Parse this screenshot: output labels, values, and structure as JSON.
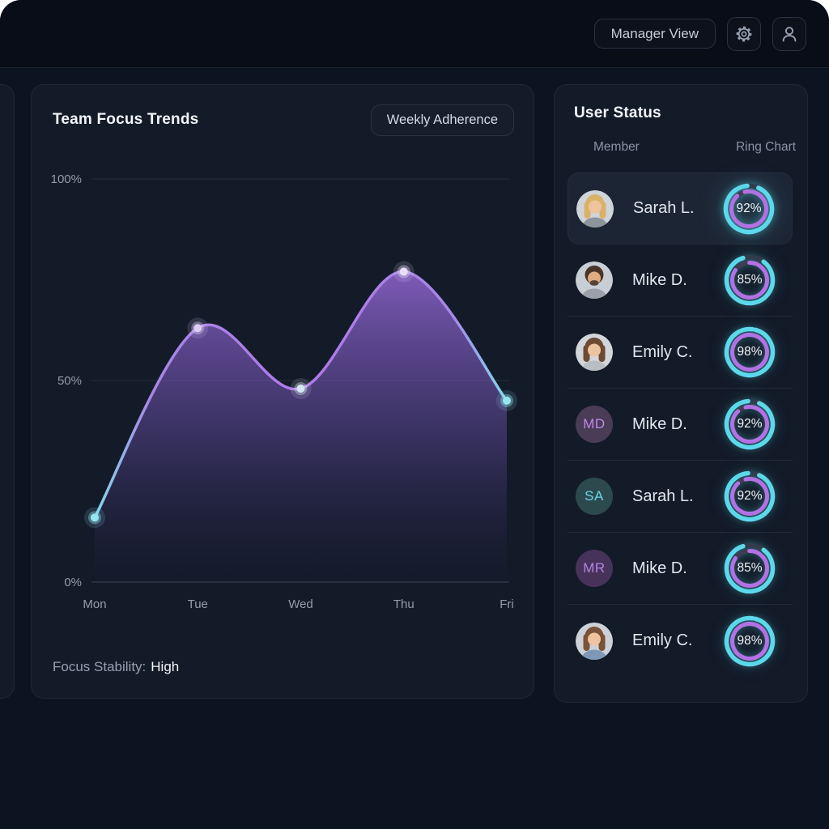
{
  "topbar": {
    "manager_view_label": "Manager View",
    "icons": [
      "gear-icon",
      "user-icon"
    ]
  },
  "focus_card": {
    "title": "Team Focus Trends",
    "button_label": "Weekly Adherence",
    "footer_label": "Focus Stability:",
    "footer_value": "High"
  },
  "chart_data": {
    "type": "area",
    "title": "Team Focus Trends",
    "categories": [
      "Mon",
      "Tue",
      "Wed",
      "Thu",
      "Fri"
    ],
    "values": [
      16,
      63,
      48,
      77,
      45
    ],
    "ylim": [
      0,
      100
    ],
    "yticks": [
      {
        "label": "100%",
        "value": 100
      },
      {
        "label": "50%",
        "value": 50
      },
      {
        "label": "0%",
        "value": 0
      }
    ],
    "grid": true,
    "legend": false,
    "line_gradient": [
      "#7eddec",
      "#a687e6",
      "#b178e8",
      "#a687e6",
      "#7eddec"
    ],
    "fill_top": "rgba(155,108,224,0.78)",
    "fill_mid": "rgba(104,79,168,0.42)",
    "fill_bottom": "rgba(45,38,80,0.06)",
    "point_colors": [
      "#93e6f0",
      "#dccdf6",
      "#d4e6f2",
      "#e8def8",
      "#93e6f0"
    ]
  },
  "user_status": {
    "title": "User Status",
    "columns": [
      "Member",
      "Ring Chart"
    ],
    "ring_colors": {
      "outer": "#5bd9ea",
      "inner": "#b371e4",
      "track": "#333b4d",
      "track_inner": "#423c52"
    },
    "rows": [
      {
        "name": "Sarah L.",
        "pct": 92,
        "highlight": true,
        "avatar": {
          "type": "photo",
          "bg": "#cfd4da",
          "hair": "#d8b269",
          "skin": "#eec39d",
          "shirt": "#8d949c",
          "long_hair": true
        }
      },
      {
        "name": "Mike D.",
        "pct": 85,
        "avatar": {
          "type": "photo",
          "bg": "#c9ced4",
          "hair": "#4a3628",
          "skin": "#e0ac82",
          "shirt": "#9aa1a8",
          "beard": true
        }
      },
      {
        "name": "Emily C.",
        "pct": 98,
        "avatar": {
          "type": "photo",
          "bg": "#d2d6db",
          "hair": "#6d4a33",
          "skin": "#edc4a0",
          "shirt": "#b9bec4",
          "long_hair": true
        }
      },
      {
        "name": "Mike D.",
        "pct": 92,
        "avatar": {
          "type": "initials",
          "text": "MD",
          "bg": "#4a3b57",
          "fg": "#c08ae8"
        }
      },
      {
        "name": "Sarah L.",
        "pct": 92,
        "avatar": {
          "type": "initials",
          "text": "SA",
          "bg": "#2c4a4e",
          "fg": "#6fd3e8"
        }
      },
      {
        "name": "Mike D.",
        "pct": 85,
        "avatar": {
          "type": "initials",
          "text": "MR",
          "bg": "#473359",
          "fg": "#b581e4"
        }
      },
      {
        "name": "Emily C.",
        "pct": 98,
        "avatar": {
          "type": "photo",
          "bg": "#ccd1d7",
          "hair": "#7a5238",
          "skin": "#eec4a0",
          "shirt": "#7f98b5",
          "long_hair": true
        }
      }
    ]
  },
  "colors": {
    "page_bg": "#0d1421",
    "topbar_bg": "#080d18",
    "card_bg": "#131a28",
    "highlight_row_bg": "#1c2534",
    "accent_cyan": "#5bd9ea",
    "accent_purple": "#b371e4"
  }
}
